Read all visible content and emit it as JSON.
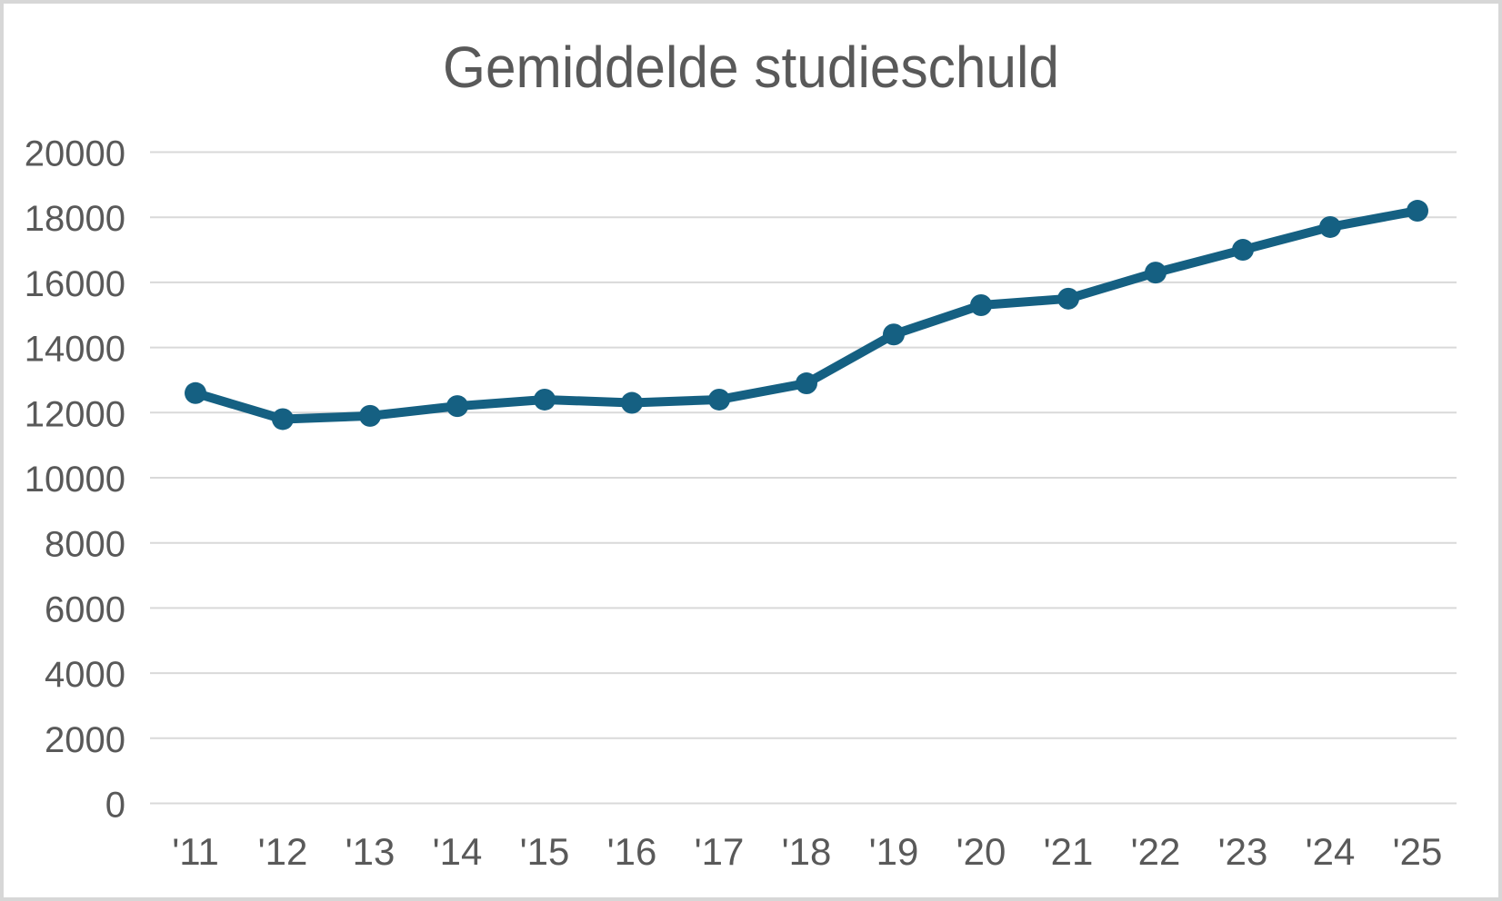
{
  "chart_data": {
    "type": "line",
    "title": "Gemiddelde studieschuld",
    "categories": [
      "'11",
      "'12",
      "'13",
      "'14",
      "'15",
      "'16",
      "'17",
      "'18",
      "'19",
      "'20",
      "'21",
      "'22",
      "'23",
      "'24",
      "'25"
    ],
    "values": [
      12600,
      11800,
      11900,
      12200,
      12400,
      12300,
      12400,
      12900,
      14400,
      15300,
      15500,
      16300,
      17000,
      17700,
      18200
    ],
    "xlabel": "",
    "ylabel": "",
    "ylim": [
      0,
      20000
    ],
    "ytick_step": 2000,
    "ytick_labels": [
      "0",
      "2000",
      "4000",
      "6000",
      "8000",
      "10000",
      "12000",
      "14000",
      "16000",
      "18000",
      "20000"
    ],
    "grid": "horizontal-only",
    "legend": "none",
    "line_color": "#156082",
    "marker": "circle",
    "text_color": "#595959",
    "gridline_color": "#D9D9D9",
    "background_color": "#FFFFFF",
    "border_color": "#D7D7D7"
  }
}
